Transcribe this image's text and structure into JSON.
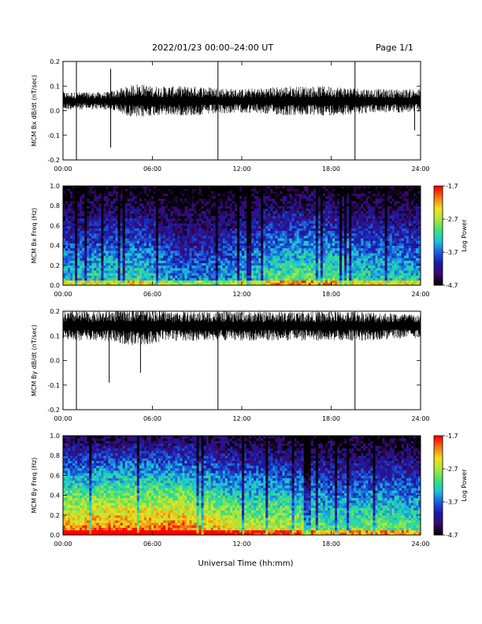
{
  "header": {
    "title": "2022/01/23  00:00–24:00 UT",
    "page": "Page 1/1"
  },
  "global_xlabel": "Universal Time (hh:mm)",
  "colors": {
    "trace": "#000000",
    "colormap": [
      "#000000",
      "#3a0a6e",
      "#1a1aa8",
      "#1c5ee0",
      "#19c6d8",
      "#3ee07a",
      "#a8e83a",
      "#f2e01c",
      "#f07a14",
      "#ff0000"
    ]
  },
  "chart_data": [
    {
      "type": "line",
      "ylabel": "MCM Bx dB/dt (nT/sec)",
      "x_tick_labels": [
        "00:00",
        "06:00",
        "12:00",
        "18:00",
        "24:00"
      ],
      "y_ticks": [
        -0.2,
        -0.1,
        0.0,
        0.1,
        0.2
      ],
      "y_tick_labels": [
        "-0.2",
        "-0.1",
        "0.0",
        "0.1",
        "0.2"
      ],
      "xlim": [
        0,
        24
      ],
      "ylim": [
        -0.2,
        0.2
      ],
      "baseline": 0.04,
      "noise_envelope": [
        {
          "x": 0,
          "amp": 0.03
        },
        {
          "x": 3,
          "amp": 0.03
        },
        {
          "x": 5,
          "amp": 0.06
        },
        {
          "x": 6,
          "amp": 0.05
        },
        {
          "x": 9,
          "amp": 0.05
        },
        {
          "x": 12,
          "amp": 0.04
        },
        {
          "x": 15,
          "amp": 0.05
        },
        {
          "x": 18,
          "amp": 0.05
        },
        {
          "x": 21,
          "amp": 0.04
        },
        {
          "x": 24,
          "amp": 0.04
        }
      ],
      "spikes": [
        {
          "x": 0.9,
          "low": -0.2,
          "high": 0.2
        },
        {
          "x": 3.2,
          "low": -0.15,
          "high": 0.17
        },
        {
          "x": 10.4,
          "low": -0.2,
          "high": 0.2
        },
        {
          "x": 19.6,
          "low": -0.2,
          "high": 0.2
        },
        {
          "x": 23.6,
          "low": -0.08,
          "high": 0.06
        }
      ]
    },
    {
      "type": "heatmap",
      "ylabel": "MCM Bx Freq (Hz)",
      "colorbar_label": "Log Power",
      "x_tick_labels": [
        "00:00",
        "06:00",
        "12:00",
        "18:00",
        "24:00"
      ],
      "y_ticks": [
        0.0,
        0.2,
        0.4,
        0.6,
        0.8,
        1.0
      ],
      "y_tick_labels": [
        "0.0",
        "0.2",
        "0.4",
        "0.6",
        "0.8",
        "1.0"
      ],
      "xlim": [
        0,
        24
      ],
      "ylim": [
        0,
        1
      ],
      "clim": [
        -4.7,
        -1.7
      ],
      "colorbar_ticks": [
        -1.7,
        -2.7,
        -3.7,
        -4.7
      ],
      "colorbar_tick_labels": [
        "-1.7",
        "-2.7",
        "-3.7",
        "-4.7"
      ],
      "activity_profile": [
        {
          "x": 0,
          "level": 0.35
        },
        {
          "x": 5,
          "level": 0.42
        },
        {
          "x": 8,
          "level": 0.25
        },
        {
          "x": 11,
          "level": 0.3
        },
        {
          "x": 14,
          "level": 0.45
        },
        {
          "x": 17,
          "level": 0.5
        },
        {
          "x": 20,
          "level": 0.4
        },
        {
          "x": 24,
          "level": 0.35
        }
      ]
    },
    {
      "type": "line",
      "ylabel": "MCM By dB/dt (nT/sec)",
      "x_tick_labels": [
        "00:00",
        "06:00",
        "12:00",
        "18:00",
        "24:00"
      ],
      "y_ticks": [
        -0.2,
        -0.1,
        0.0,
        0.1,
        0.2
      ],
      "y_tick_labels": [
        "-0.2",
        "-0.1",
        "0.0",
        "0.1",
        "0.2"
      ],
      "xlim": [
        0,
        24
      ],
      "ylim": [
        -0.2,
        0.2
      ],
      "baseline": 0.14,
      "noise_envelope": [
        {
          "x": 0,
          "amp": 0.05
        },
        {
          "x": 3,
          "amp": 0.05
        },
        {
          "x": 5,
          "amp": 0.07
        },
        {
          "x": 7,
          "amp": 0.05
        },
        {
          "x": 10,
          "amp": 0.05
        },
        {
          "x": 12,
          "amp": 0.05
        },
        {
          "x": 16,
          "amp": 0.05
        },
        {
          "x": 20,
          "amp": 0.05
        },
        {
          "x": 24,
          "amp": 0.04
        }
      ],
      "spikes": [
        {
          "x": 0.9,
          "low": -0.2,
          "high": 0.2
        },
        {
          "x": 3.1,
          "low": -0.09,
          "high": 0.2
        },
        {
          "x": 5.2,
          "low": -0.05,
          "high": 0.2
        },
        {
          "x": 10.4,
          "low": -0.2,
          "high": 0.2
        },
        {
          "x": 19.6,
          "low": -0.2,
          "high": 0.2
        }
      ]
    },
    {
      "type": "heatmap",
      "ylabel": "MCM By Freq (Hz)",
      "colorbar_label": "Log Power",
      "x_tick_labels": [
        "00:00",
        "06:00",
        "12:00",
        "18:00",
        "24:00"
      ],
      "y_ticks": [
        0.0,
        0.2,
        0.4,
        0.6,
        0.8,
        1.0
      ],
      "y_tick_labels": [
        "0.0",
        "0.2",
        "0.4",
        "0.6",
        "0.8",
        "1.0"
      ],
      "xlim": [
        0,
        24
      ],
      "ylim": [
        0,
        1
      ],
      "clim": [
        -4.7,
        -1.7
      ],
      "colorbar_ticks": [
        -1.7,
        -2.7,
        -3.7,
        -4.7
      ],
      "colorbar_tick_labels": [
        "-1.7",
        "-2.7",
        "-3.7",
        "-4.7"
      ],
      "activity_profile": [
        {
          "x": 0,
          "level": 0.75
        },
        {
          "x": 4,
          "level": 0.8
        },
        {
          "x": 8,
          "level": 0.8
        },
        {
          "x": 12,
          "level": 0.6
        },
        {
          "x": 15,
          "level": 0.6
        },
        {
          "x": 18,
          "level": 0.45
        },
        {
          "x": 21,
          "level": 0.5
        },
        {
          "x": 24,
          "level": 0.45
        }
      ]
    }
  ]
}
